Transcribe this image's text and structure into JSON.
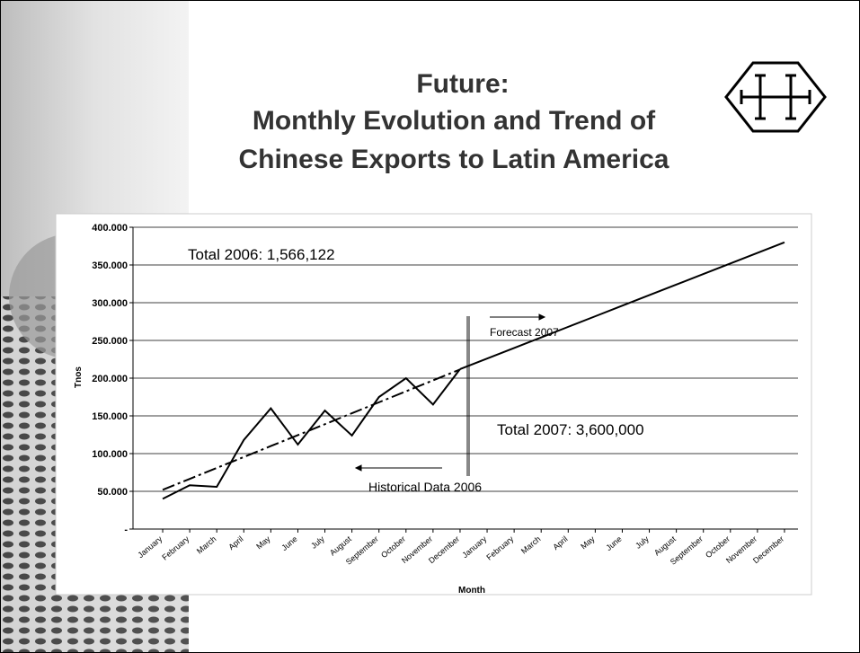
{
  "slide": {
    "title": [
      "Future:",
      "Monthly Evolution and Trend of",
      "Chinese Exports to Latin America"
    ]
  },
  "chart_data": {
    "type": "line",
    "x_label": "Month",
    "y_label": "Tnos",
    "categories": [
      "January",
      "February",
      "March",
      "April",
      "May",
      "June",
      "July",
      "August",
      "September",
      "October",
      "November",
      "December",
      "January",
      "February",
      "March",
      "April",
      "May",
      "June",
      "July",
      "August",
      "September",
      "October",
      "November",
      "December"
    ],
    "series": [
      {
        "color": "#000000",
        "line_style": "solid",
        "values": [
          40000,
          58000,
          56000,
          118000,
          160000,
          112000,
          157000,
          124000,
          175000,
          200000,
          165000,
          212000,
          null,
          null,
          null,
          null,
          null,
          null,
          null,
          null,
          null,
          null,
          null,
          null
        ]
      },
      {
        "color": "#000000",
        "line_style": "dashdot",
        "values": [
          52000,
          66500,
          81000,
          95500,
          110000,
          124500,
          139000,
          153500,
          168000,
          182500,
          197000,
          211500,
          null,
          null,
          null,
          null,
          null,
          null,
          null,
          null,
          null,
          null,
          null,
          null
        ]
      },
      {
        "color": "#000000",
        "line_style": "solid",
        "values": [
          null,
          null,
          null,
          null,
          null,
          null,
          null,
          null,
          null,
          null,
          null,
          212000,
          226000,
          240000,
          254000,
          268000,
          282000,
          296000,
          310000,
          324000,
          338000,
          352000,
          366000,
          380000
        ]
      }
    ],
    "ylim": [
      0,
      400000
    ],
    "yticks": [
      {
        "value": 0,
        "label": "-"
      },
      {
        "value": 50000,
        "label": "50.000"
      },
      {
        "value": 100000,
        "label": "100.000"
      },
      {
        "value": 150000,
        "label": "150.000"
      },
      {
        "value": 200000,
        "label": "200.000"
      },
      {
        "value": 250000,
        "label": "250.000"
      },
      {
        "value": 300000,
        "label": "300.000"
      },
      {
        "value": 350000,
        "label": "350.000"
      },
      {
        "value": 400000,
        "label": "400.000"
      }
    ],
    "grid": true,
    "annotations": [
      "Total 2006: 1,566,122",
      "Forecast 2007",
      "Total 2007: 3,600,000",
      "Historical Data 2006"
    ]
  }
}
